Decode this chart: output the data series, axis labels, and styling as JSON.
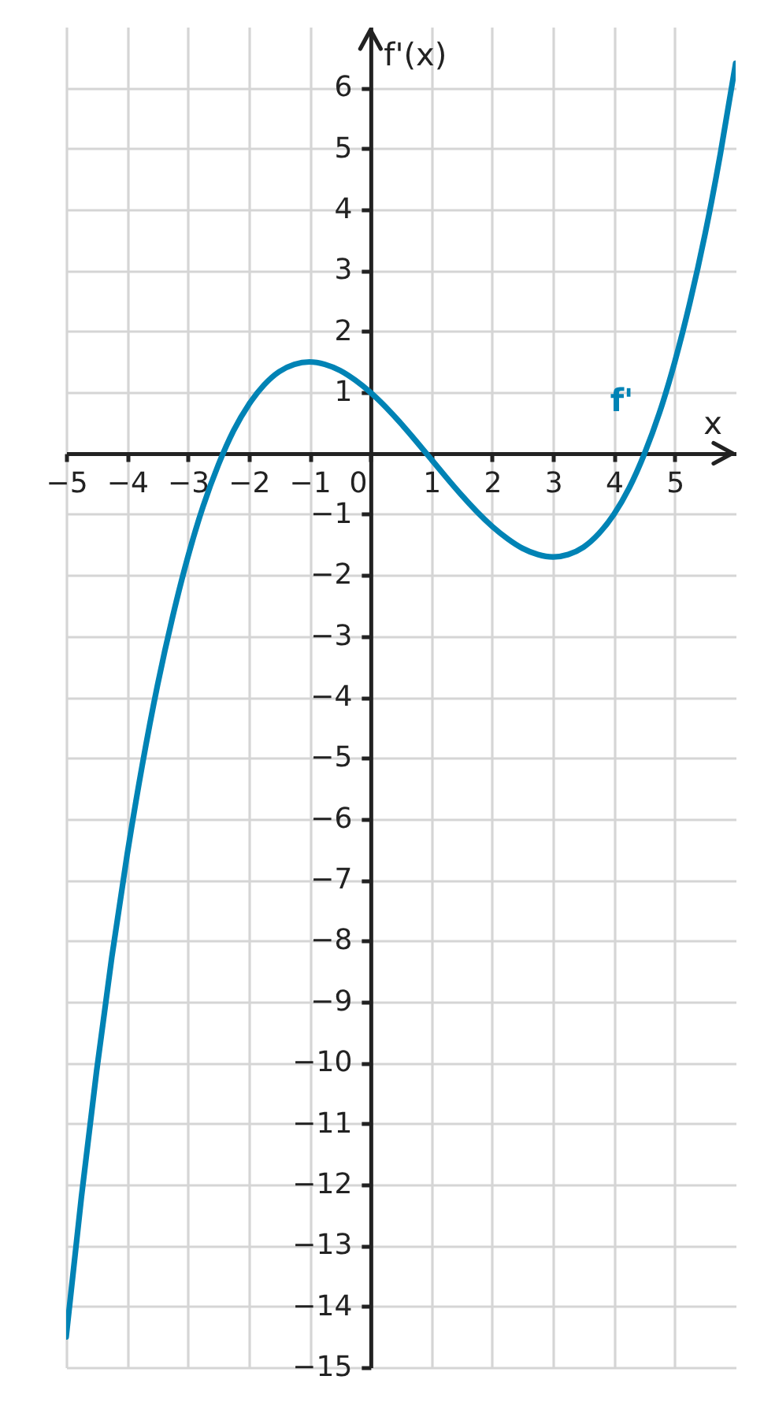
{
  "chart_data": {
    "type": "line",
    "xlabel": "x",
    "ylabel": "f'(x)",
    "x": [
      -5,
      -4.75,
      -4.5,
      -4.25,
      -4,
      -3.75,
      -3.5,
      -3.25,
      -3,
      -2.75,
      -2.5,
      -2.25,
      -2,
      -1.75,
      -1.5,
      -1.25,
      -1,
      -0.75,
      -0.5,
      -0.25,
      0,
      0.25,
      0.5,
      0.75,
      1,
      1.25,
      1.5,
      1.75,
      2,
      2.25,
      2.5,
      2.75,
      3,
      3.25,
      3.5,
      3.75,
      4,
      4.25,
      4.5,
      4.75,
      5,
      5.25,
      5.5,
      5.75,
      6
    ],
    "series": [
      {
        "name": "f'",
        "color": "#0083b5",
        "values": [
          -14.5,
          -12.21,
          -10.14,
          -8.27,
          -6.6,
          -5.12,
          -3.81,
          -2.68,
          -1.7,
          -0.87,
          -0.19,
          0.37,
          0.8,
          1.12,
          1.34,
          1.46,
          1.5,
          1.46,
          1.36,
          1.2,
          1,
          0.76,
          0.49,
          0.2,
          -0.1,
          -0.4,
          -0.69,
          -0.96,
          -1.2,
          -1.4,
          -1.56,
          -1.66,
          -1.7,
          -1.66,
          -1.54,
          -1.32,
          -1,
          -0.57,
          -0.01,
          0.67,
          1.5,
          2.48,
          3.61,
          4.92,
          6.4
        ]
      }
    ],
    "xlim": [
      -5,
      6
    ],
    "ylim": [
      -15,
      7
    ],
    "xticks": [
      -5,
      -4,
      -3,
      -2,
      -1,
      0,
      1,
      2,
      3,
      4,
      5
    ],
    "yticks": [
      -15,
      -14,
      -13,
      -12,
      -11,
      -10,
      -9,
      -8,
      -7,
      -6,
      -5,
      -4,
      -3,
      -2,
      -1,
      1,
      2,
      3,
      4,
      5,
      6
    ],
    "grid": true,
    "legend": false
  }
}
